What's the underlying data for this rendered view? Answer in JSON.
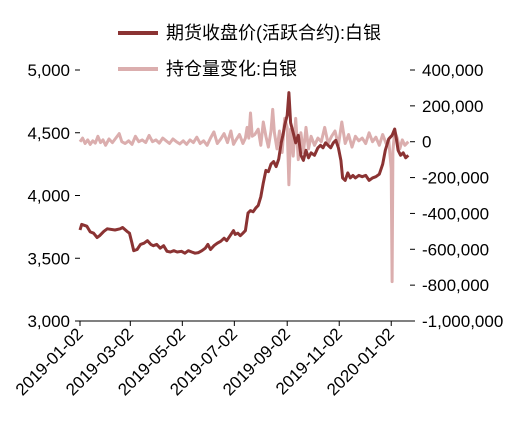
{
  "chart_data": {
    "type": "line",
    "series": [
      {
        "name": "期货收盘价(活跃合约):白银",
        "axis": "left",
        "color": "#8b3333",
        "points": [
          [
            "2019-01-02",
            3725
          ],
          [
            "2019-01-04",
            3770
          ],
          [
            "2019-01-10",
            3755
          ],
          [
            "2019-01-14",
            3710
          ],
          [
            "2019-01-18",
            3700
          ],
          [
            "2019-01-22",
            3665
          ],
          [
            "2019-01-25",
            3680
          ],
          [
            "2019-01-30",
            3715
          ],
          [
            "2019-02-03",
            3735
          ],
          [
            "2019-02-12",
            3725
          ],
          [
            "2019-02-18",
            3735
          ],
          [
            "2019-02-21",
            3745
          ],
          [
            "2019-02-26",
            3715
          ],
          [
            "2019-03-01",
            3700
          ],
          [
            "2019-03-04",
            3620
          ],
          [
            "2019-03-06",
            3560
          ],
          [
            "2019-03-10",
            3570
          ],
          [
            "2019-03-14",
            3610
          ],
          [
            "2019-03-18",
            3620
          ],
          [
            "2019-03-22",
            3640
          ],
          [
            "2019-03-26",
            3610
          ],
          [
            "2019-03-29",
            3600
          ],
          [
            "2019-04-02",
            3610
          ],
          [
            "2019-04-06",
            3580
          ],
          [
            "2019-04-10",
            3600
          ],
          [
            "2019-04-14",
            3555
          ],
          [
            "2019-04-18",
            3550
          ],
          [
            "2019-04-22",
            3560
          ],
          [
            "2019-04-26",
            3550
          ],
          [
            "2019-05-01",
            3555
          ],
          [
            "2019-05-05",
            3540
          ],
          [
            "2019-05-09",
            3560
          ],
          [
            "2019-05-13",
            3550
          ],
          [
            "2019-05-17",
            3540
          ],
          [
            "2019-05-21",
            3545
          ],
          [
            "2019-05-25",
            3560
          ],
          [
            "2019-05-29",
            3580
          ],
          [
            "2019-06-01",
            3610
          ],
          [
            "2019-06-04",
            3570
          ],
          [
            "2019-06-08",
            3600
          ],
          [
            "2019-06-12",
            3620
          ],
          [
            "2019-06-16",
            3635
          ],
          [
            "2019-06-20",
            3660
          ],
          [
            "2019-06-23",
            3640
          ],
          [
            "2019-06-27",
            3680
          ],
          [
            "2019-07-01",
            3720
          ],
          [
            "2019-07-03",
            3690
          ],
          [
            "2019-07-06",
            3700
          ],
          [
            "2019-07-09",
            3680
          ],
          [
            "2019-07-12",
            3700
          ],
          [
            "2019-07-15",
            3720
          ],
          [
            "2019-07-18",
            3860
          ],
          [
            "2019-07-21",
            3880
          ],
          [
            "2019-07-24",
            3870
          ],
          [
            "2019-07-27",
            3900
          ],
          [
            "2019-07-30",
            3920
          ],
          [
            "2019-08-02",
            3990
          ],
          [
            "2019-08-05",
            4100
          ],
          [
            "2019-08-08",
            4200
          ],
          [
            "2019-08-11",
            4190
          ],
          [
            "2019-08-14",
            4250
          ],
          [
            "2019-08-17",
            4270
          ],
          [
            "2019-08-20",
            4230
          ],
          [
            "2019-08-23",
            4290
          ],
          [
            "2019-08-26",
            4420
          ],
          [
            "2019-08-28",
            4480
          ],
          [
            "2019-08-30",
            4560
          ],
          [
            "2019-09-02",
            4640
          ],
          [
            "2019-09-04",
            4820
          ],
          [
            "2019-09-06",
            4580
          ],
          [
            "2019-09-09",
            4500
          ],
          [
            "2019-09-12",
            4420
          ],
          [
            "2019-09-15",
            4480
          ],
          [
            "2019-09-18",
            4320
          ],
          [
            "2019-09-21",
            4280
          ],
          [
            "2019-09-24",
            4360
          ],
          [
            "2019-09-27",
            4300
          ],
          [
            "2019-09-30",
            4340
          ],
          [
            "2019-10-04",
            4320
          ],
          [
            "2019-10-08",
            4380
          ],
          [
            "2019-10-11",
            4400
          ],
          [
            "2019-10-14",
            4380
          ],
          [
            "2019-10-17",
            4420
          ],
          [
            "2019-10-20",
            4400
          ],
          [
            "2019-10-23",
            4380
          ],
          [
            "2019-10-26",
            4420
          ],
          [
            "2019-10-29",
            4440
          ],
          [
            "2019-11-01",
            4380
          ],
          [
            "2019-11-04",
            4280
          ],
          [
            "2019-11-06",
            4140
          ],
          [
            "2019-11-09",
            4120
          ],
          [
            "2019-11-12",
            4180
          ],
          [
            "2019-11-15",
            4140
          ],
          [
            "2019-11-18",
            4160
          ],
          [
            "2019-11-21",
            4140
          ],
          [
            "2019-11-25",
            4160
          ],
          [
            "2019-11-29",
            4150
          ],
          [
            "2019-12-03",
            4160
          ],
          [
            "2019-12-07",
            4120
          ],
          [
            "2019-12-11",
            4140
          ],
          [
            "2019-12-15",
            4150
          ],
          [
            "2019-12-19",
            4170
          ],
          [
            "2019-12-23",
            4250
          ],
          [
            "2019-12-26",
            4360
          ],
          [
            "2019-12-30",
            4450
          ],
          [
            "2020-01-03",
            4480
          ],
          [
            "2020-01-06",
            4530
          ],
          [
            "2020-01-08",
            4450
          ],
          [
            "2020-01-10",
            4360
          ],
          [
            "2020-01-13",
            4320
          ],
          [
            "2020-01-16",
            4340
          ],
          [
            "2020-01-19",
            4300
          ],
          [
            "2020-01-22",
            4320
          ]
        ]
      },
      {
        "name": "持仓量变化:白银",
        "axis": "right",
        "color": "#dbaeae",
        "points": [
          [
            "2019-01-02",
            0
          ],
          [
            "2019-01-05",
            20000
          ],
          [
            "2019-01-08",
            -10000
          ],
          [
            "2019-01-11",
            10000
          ],
          [
            "2019-01-14",
            -15000
          ],
          [
            "2019-01-17",
            5000
          ],
          [
            "2019-01-20",
            -8000
          ],
          [
            "2019-01-23",
            30000
          ],
          [
            "2019-01-26",
            -5000
          ],
          [
            "2019-01-29",
            10000
          ],
          [
            "2019-02-01",
            -20000
          ],
          [
            "2019-02-05",
            15000
          ],
          [
            "2019-02-09",
            -5000
          ],
          [
            "2019-02-13",
            20000
          ],
          [
            "2019-02-17",
            45000
          ],
          [
            "2019-02-20",
            0
          ],
          [
            "2019-02-24",
            -10000
          ],
          [
            "2019-02-28",
            5000
          ],
          [
            "2019-03-04",
            -15000
          ],
          [
            "2019-03-08",
            30000
          ],
          [
            "2019-03-12",
            0
          ],
          [
            "2019-03-16",
            10000
          ],
          [
            "2019-03-20",
            -5000
          ],
          [
            "2019-03-24",
            35000
          ],
          [
            "2019-03-28",
            0
          ],
          [
            "2019-04-01",
            10000
          ],
          [
            "2019-04-05",
            -8000
          ],
          [
            "2019-04-09",
            20000
          ],
          [
            "2019-04-13",
            5000
          ],
          [
            "2019-04-17",
            -10000
          ],
          [
            "2019-04-21",
            15000
          ],
          [
            "2019-04-25",
            0
          ],
          [
            "2019-04-29",
            -12000
          ],
          [
            "2019-05-03",
            5000
          ],
          [
            "2019-05-07",
            -15000
          ],
          [
            "2019-05-11",
            10000
          ],
          [
            "2019-05-15",
            -5000
          ],
          [
            "2019-05-19",
            25000
          ],
          [
            "2019-05-23",
            -10000
          ],
          [
            "2019-05-27",
            5000
          ],
          [
            "2019-05-31",
            -20000
          ],
          [
            "2019-06-04",
            20000
          ],
          [
            "2019-06-08",
            55000
          ],
          [
            "2019-06-12",
            -10000
          ],
          [
            "2019-06-16",
            15000
          ],
          [
            "2019-06-20",
            45000
          ],
          [
            "2019-06-24",
            -5000
          ],
          [
            "2019-06-28",
            60000
          ],
          [
            "2019-07-01",
            -15000
          ],
          [
            "2019-07-04",
            10000
          ],
          [
            "2019-07-08",
            40000
          ],
          [
            "2019-07-12",
            -10000
          ],
          [
            "2019-07-15",
            20000
          ],
          [
            "2019-07-17",
            80000
          ],
          [
            "2019-07-19",
            20000
          ],
          [
            "2019-07-21",
            160000
          ],
          [
            "2019-07-23",
            30000
          ],
          [
            "2019-07-26",
            40000
          ],
          [
            "2019-07-30",
            70000
          ],
          [
            "2019-08-02",
            -20000
          ],
          [
            "2019-08-05",
            110000
          ],
          [
            "2019-08-08",
            30000
          ],
          [
            "2019-08-11",
            -30000
          ],
          [
            "2019-08-14",
            60000
          ],
          [
            "2019-08-16",
            180000
          ],
          [
            "2019-08-18",
            50000
          ],
          [
            "2019-08-21",
            -40000
          ],
          [
            "2019-08-24",
            60000
          ],
          [
            "2019-08-27",
            -60000
          ],
          [
            "2019-08-30",
            130000
          ],
          [
            "2019-09-02",
            80000
          ],
          [
            "2019-09-04",
            -240000
          ],
          [
            "2019-09-06",
            70000
          ],
          [
            "2019-09-09",
            -80000
          ],
          [
            "2019-09-12",
            130000
          ],
          [
            "2019-09-15",
            -100000
          ],
          [
            "2019-09-18",
            50000
          ],
          [
            "2019-09-21",
            -60000
          ],
          [
            "2019-09-24",
            80000
          ],
          [
            "2019-09-27",
            -40000
          ],
          [
            "2019-09-30",
            30000
          ],
          [
            "2019-10-04",
            -20000
          ],
          [
            "2019-10-08",
            20000
          ],
          [
            "2019-10-12",
            0
          ],
          [
            "2019-10-16",
            80000
          ],
          [
            "2019-10-20",
            -10000
          ],
          [
            "2019-10-24",
            30000
          ],
          [
            "2019-10-28",
            60000
          ],
          [
            "2019-11-01",
            -20000
          ],
          [
            "2019-11-05",
            110000
          ],
          [
            "2019-11-09",
            -10000
          ],
          [
            "2019-11-13",
            40000
          ],
          [
            "2019-11-17",
            -30000
          ],
          [
            "2019-11-21",
            30000
          ],
          [
            "2019-11-25",
            5000
          ],
          [
            "2019-11-29",
            20000
          ],
          [
            "2019-12-03",
            -10000
          ],
          [
            "2019-12-07",
            50000
          ],
          [
            "2019-12-11",
            0
          ],
          [
            "2019-12-15",
            25000
          ],
          [
            "2019-12-19",
            -20000
          ],
          [
            "2019-12-23",
            40000
          ],
          [
            "2019-12-27",
            -10000
          ],
          [
            "2019-12-30",
            10000
          ],
          [
            "2020-01-02",
            -150000
          ],
          [
            "2020-01-03",
            -780000
          ],
          [
            "2020-01-04",
            -50000
          ],
          [
            "2020-01-06",
            60000
          ],
          [
            "2020-01-09",
            20000
          ],
          [
            "2020-01-12",
            -40000
          ],
          [
            "2020-01-15",
            10000
          ],
          [
            "2020-01-18",
            -20000
          ],
          [
            "2020-01-22",
            0
          ]
        ]
      }
    ],
    "left_axis": {
      "min": 3000,
      "max": 5000,
      "ticks": [
        3000,
        3500,
        4000,
        4500,
        5000
      ],
      "tick_labels": [
        "3,000",
        "3,500",
        "4,000",
        "4,500",
        "5,000"
      ]
    },
    "right_axis": {
      "min": -1000000,
      "max": 400000,
      "ticks": [
        -1000000,
        -800000,
        -600000,
        -400000,
        -200000,
        0,
        200000,
        400000
      ],
      "tick_labels": [
        "-1,000,000",
        "-800,000",
        "-600,000",
        "-400,000",
        "-200,000",
        "0",
        "200,000",
        "400,000"
      ]
    },
    "x_axis": {
      "type": "date",
      "min": "2019-01-02",
      "max": "2020-01-24",
      "ticks": [
        "2019-01-02",
        "2019-03-02",
        "2019-05-02",
        "2019-07-02",
        "2019-09-02",
        "2019-11-02",
        "2020-01-02"
      ]
    },
    "legend": {
      "position": "top",
      "items": [
        "期货收盘价(活跃合约):白银",
        "持仓量变化:白银"
      ]
    },
    "grid": false
  }
}
